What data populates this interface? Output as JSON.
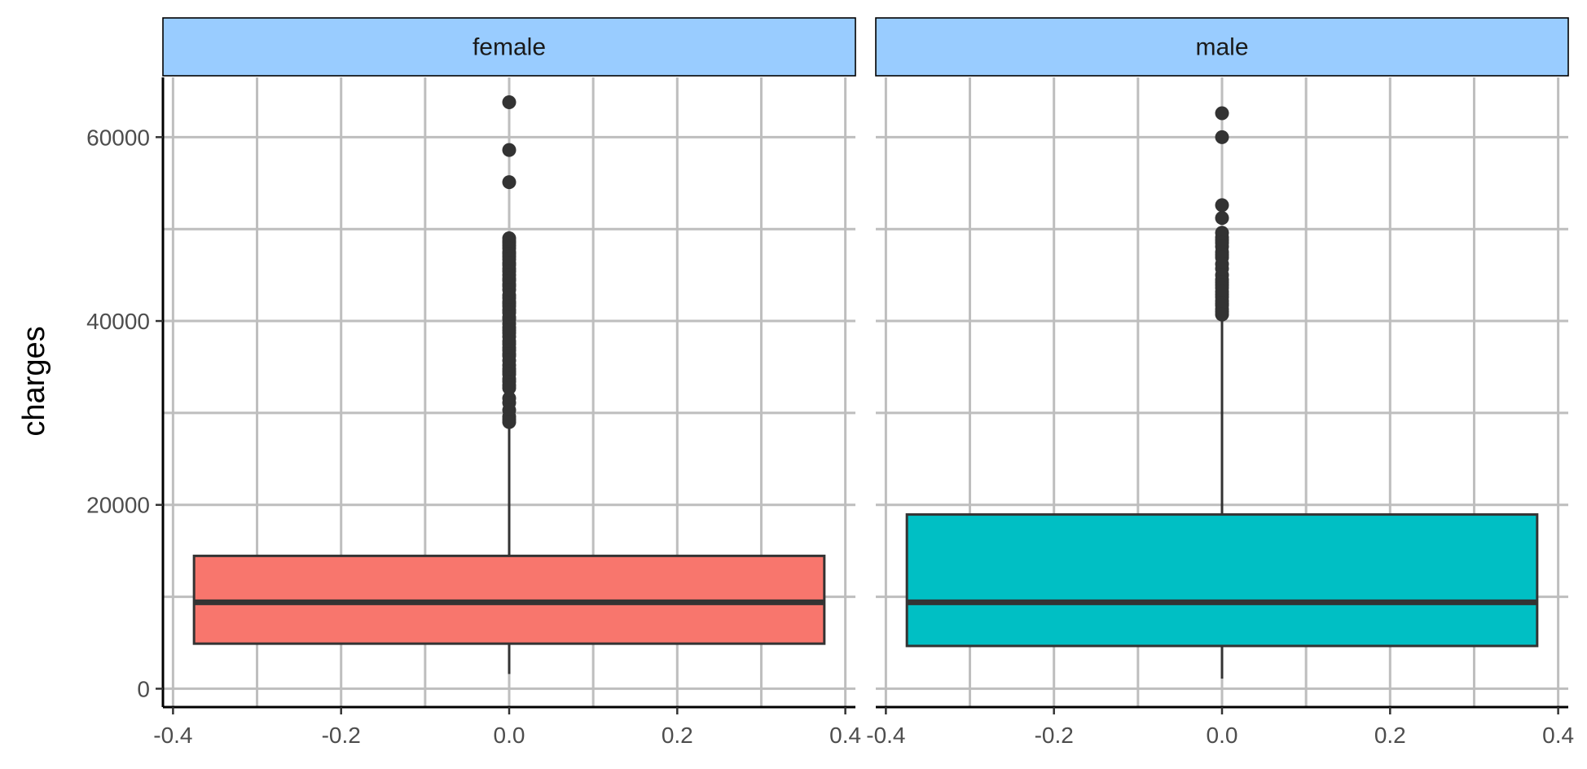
{
  "chart_data": {
    "type": "boxplot",
    "facet_by": "sex",
    "xlabel": "",
    "ylabel": "charges",
    "xlim": [
      -0.4,
      0.4
    ],
    "x_ticks": [
      -0.4,
      -0.2,
      0.0,
      0.2,
      0.4
    ],
    "x_tick_labels": [
      "-0.4",
      "-0.2",
      "0.0",
      "0.2",
      "0.4"
    ],
    "ylim": [
      -2000,
      66500
    ],
    "y_ticks": [
      0,
      20000,
      40000,
      60000
    ],
    "y_tick_labels": [
      "0",
      "20000",
      "40000",
      "60000"
    ],
    "grid": true,
    "legend": "none",
    "colors": {
      "strip_fill": "#99ccff",
      "female_fill": "#f8766d",
      "male_fill": "#00bfc4",
      "box_stroke": "#333333",
      "grid": "#bebebe",
      "axis": "#000000",
      "point": "#333333"
    },
    "panels": [
      {
        "label": "female",
        "fill": "#f8766d",
        "min": 1600,
        "q1": 4900,
        "median": 9400,
        "q3": 14450,
        "whisker_high": 28900,
        "outliers": [
          63800,
          58600,
          55100,
          49000,
          48700,
          48500,
          48200,
          47900,
          47500,
          47300,
          47000,
          46700,
          46300,
          46100,
          45700,
          45400,
          45000,
          44600,
          44400,
          44000,
          43800,
          43400,
          42800,
          42500,
          42100,
          41900,
          41600,
          41200,
          40900,
          40400,
          40200,
          39700,
          39300,
          39000,
          38700,
          38300,
          37800,
          37500,
          37100,
          36800,
          36400,
          36200,
          35700,
          35200,
          34800,
          34500,
          34200,
          33700,
          33400,
          33000,
          32700,
          31600,
          31100,
          30300,
          29600,
          29300,
          29000
        ]
      },
      {
        "label": "male",
        "fill": "#00bfc4",
        "min": 1100,
        "q1": 4650,
        "median": 9400,
        "q3": 18950,
        "whisker_high": 40400,
        "outliers": [
          62600,
          60000,
          52600,
          51200,
          49600,
          49100,
          48800,
          48500,
          48100,
          47500,
          47200,
          46900,
          46200,
          45700,
          45000,
          44500,
          44200,
          43900,
          43600,
          43200,
          42900,
          42600,
          42200,
          41900,
          41700,
          41300,
          41000,
          40700
        ]
      }
    ]
  }
}
